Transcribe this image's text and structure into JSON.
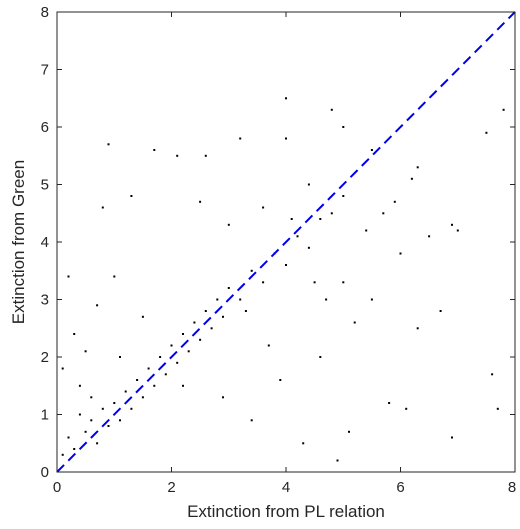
{
  "chart_data": {
    "type": "scatter",
    "xlabel": "Extinction from PL relation",
    "ylabel": "Extinction from Green",
    "xlim": [
      0,
      8
    ],
    "ylim": [
      0,
      8
    ],
    "xticks": [
      "0",
      "2",
      "4",
      "6",
      "8"
    ],
    "yticks": [
      "0",
      "1",
      "2",
      "3",
      "4",
      "5",
      "6",
      "7",
      "8"
    ],
    "grid": false,
    "reference_line": {
      "x": [
        0,
        8
      ],
      "y": [
        0,
        8
      ],
      "style": "dashed",
      "color": "#0000ee"
    },
    "series": [
      {
        "marker_color": "#000000",
        "points": [
          [
            0.1,
            0.3
          ],
          [
            0.2,
            0.6
          ],
          [
            0.3,
            0.4
          ],
          [
            0.4,
            1.0
          ],
          [
            0.5,
            0.7
          ],
          [
            0.6,
            0.9
          ],
          [
            0.7,
            0.5
          ],
          [
            0.8,
            1.1
          ],
          [
            0.9,
            0.8
          ],
          [
            1.0,
            1.2
          ],
          [
            1.1,
            0.9
          ],
          [
            1.2,
            1.4
          ],
          [
            1.3,
            1.1
          ],
          [
            1.4,
            1.6
          ],
          [
            1.5,
            1.3
          ],
          [
            1.6,
            1.8
          ],
          [
            1.7,
            1.5
          ],
          [
            1.8,
            2.0
          ],
          [
            1.9,
            1.7
          ],
          [
            2.0,
            2.2
          ],
          [
            2.1,
            1.9
          ],
          [
            2.2,
            2.4
          ],
          [
            2.3,
            2.1
          ],
          [
            2.4,
            2.6
          ],
          [
            2.5,
            2.3
          ],
          [
            2.6,
            2.8
          ],
          [
            2.7,
            2.5
          ],
          [
            2.8,
            3.0
          ],
          [
            2.9,
            2.7
          ],
          [
            3.0,
            3.2
          ],
          [
            3.2,
            3.0
          ],
          [
            3.4,
            3.5
          ],
          [
            3.6,
            3.3
          ],
          [
            3.8,
            3.8
          ],
          [
            4.0,
            3.6
          ],
          [
            4.2,
            4.1
          ],
          [
            4.4,
            3.9
          ],
          [
            4.6,
            4.4
          ],
          [
            4.8,
            4.5
          ],
          [
            5.0,
            4.8
          ],
          [
            1.5,
            2.7
          ],
          [
            1.0,
            3.4
          ],
          [
            0.8,
            4.6
          ],
          [
            1.3,
            4.8
          ],
          [
            0.9,
            5.7
          ],
          [
            1.7,
            5.6
          ],
          [
            2.1,
            5.5
          ],
          [
            2.6,
            5.5
          ],
          [
            3.2,
            5.8
          ],
          [
            4.0,
            5.8
          ],
          [
            4.0,
            6.5
          ],
          [
            4.8,
            6.3
          ],
          [
            5.0,
            6.0
          ],
          [
            5.5,
            5.6
          ],
          [
            6.2,
            5.1
          ],
          [
            6.3,
            5.3
          ],
          [
            6.9,
            4.3
          ],
          [
            7.0,
            4.2
          ],
          [
            7.5,
            5.9
          ],
          [
            7.8,
            6.3
          ],
          [
            0.3,
            2.4
          ],
          [
            0.5,
            2.1
          ],
          [
            0.2,
            3.4
          ],
          [
            0.1,
            1.8
          ],
          [
            0.4,
            1.5
          ],
          [
            0.6,
            1.3
          ],
          [
            0.7,
            2.9
          ],
          [
            1.1,
            2.0
          ],
          [
            2.5,
            4.7
          ],
          [
            3.0,
            4.3
          ],
          [
            5.0,
            3.3
          ],
          [
            5.5,
            3.0
          ],
          [
            6.3,
            2.5
          ],
          [
            6.7,
            2.8
          ],
          [
            7.6,
            1.7
          ],
          [
            7.7,
            1.1
          ],
          [
            6.9,
            0.6
          ],
          [
            5.8,
            1.2
          ],
          [
            6.1,
            1.1
          ],
          [
            5.1,
            0.7
          ],
          [
            4.9,
            0.2
          ],
          [
            4.3,
            0.5
          ],
          [
            3.9,
            1.6
          ],
          [
            3.4,
            0.9
          ],
          [
            4.6,
            2.0
          ],
          [
            5.2,
            2.6
          ],
          [
            3.7,
            2.2
          ],
          [
            2.9,
            1.3
          ],
          [
            4.7,
            3.0
          ],
          [
            5.4,
            4.2
          ],
          [
            5.9,
            4.7
          ],
          [
            6.5,
            4.1
          ],
          [
            6.0,
            3.8
          ],
          [
            5.7,
            4.5
          ],
          [
            4.4,
            5.0
          ],
          [
            3.6,
            4.6
          ],
          [
            4.1,
            4.4
          ],
          [
            4.5,
            3.3
          ],
          [
            3.3,
            2.8
          ],
          [
            2.2,
            1.5
          ]
        ]
      }
    ]
  }
}
